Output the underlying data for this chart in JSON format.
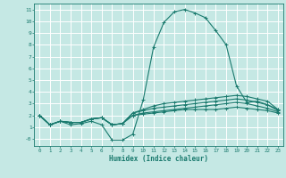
{
  "title": "",
  "xlabel": "Humidex (Indice chaleur)",
  "ylabel": "",
  "xlim": [
    -0.5,
    23.5
  ],
  "ylim": [
    -0.6,
    11.5
  ],
  "xticks": [
    0,
    1,
    2,
    3,
    4,
    5,
    6,
    7,
    8,
    9,
    10,
    11,
    12,
    13,
    14,
    15,
    16,
    17,
    18,
    19,
    20,
    21,
    22,
    23
  ],
  "yticks": [
    0,
    1,
    2,
    3,
    4,
    5,
    6,
    7,
    8,
    9,
    10,
    11
  ],
  "ytick_labels": [
    "-0",
    "1",
    "2",
    "3",
    "4",
    "5",
    "6",
    "7",
    "8",
    "9",
    "10",
    "11"
  ],
  "bg_color": "#c5e8e4",
  "grid_color": "#ffffff",
  "line_color": "#1a7a6e",
  "lines": [
    [
      0,
      2,
      1,
      1.2,
      2,
      1.5,
      3,
      1.2,
      4,
      1.3,
      5,
      1.5,
      6,
      1.2,
      7,
      -0.1,
      8,
      -0.1,
      9,
      0.4,
      10,
      3.3,
      11,
      7.8,
      12,
      9.9,
      13,
      10.8,
      14,
      11.0,
      15,
      10.7,
      16,
      10.3,
      17,
      9.2,
      18,
      8.0,
      19,
      4.5,
      20,
      3.1,
      21,
      3.2,
      22,
      2.9,
      23,
      2.4
    ],
    [
      0,
      2,
      1,
      1.2,
      2,
      1.5,
      3,
      1.4,
      4,
      1.4,
      5,
      1.7,
      6,
      1.8,
      7,
      1.2,
      8,
      1.3,
      9,
      2.2,
      10,
      2.5,
      11,
      2.8,
      12,
      3.0,
      13,
      3.1,
      14,
      3.2,
      15,
      3.3,
      16,
      3.4,
      17,
      3.5,
      18,
      3.6,
      19,
      3.7,
      20,
      3.6,
      21,
      3.4,
      22,
      3.2,
      23,
      2.5
    ],
    [
      0,
      2,
      1,
      1.2,
      2,
      1.5,
      3,
      1.4,
      4,
      1.4,
      5,
      1.7,
      6,
      1.8,
      7,
      1.2,
      8,
      1.3,
      9,
      2.2,
      10,
      2.4,
      11,
      2.6,
      12,
      2.7,
      13,
      2.8,
      14,
      2.9,
      15,
      3.0,
      16,
      3.1,
      17,
      3.2,
      18,
      3.3,
      19,
      3.4,
      20,
      3.3,
      21,
      3.1,
      22,
      2.9,
      23,
      2.5
    ],
    [
      0,
      2,
      1,
      1.2,
      2,
      1.5,
      3,
      1.4,
      4,
      1.4,
      5,
      1.7,
      6,
      1.8,
      7,
      1.2,
      8,
      1.3,
      9,
      2.0,
      10,
      2.2,
      11,
      2.3,
      12,
      2.4,
      13,
      2.5,
      14,
      2.6,
      15,
      2.7,
      16,
      2.8,
      17,
      2.9,
      18,
      3.0,
      19,
      3.1,
      20,
      3.0,
      21,
      2.8,
      22,
      2.6,
      23,
      2.3
    ],
    [
      0,
      2,
      1,
      1.2,
      2,
      1.5,
      3,
      1.4,
      4,
      1.4,
      5,
      1.7,
      6,
      1.8,
      7,
      1.2,
      8,
      1.3,
      9,
      2.0,
      10,
      2.1,
      11,
      2.2,
      12,
      2.3,
      13,
      2.4,
      14,
      2.5,
      15,
      2.5,
      16,
      2.5,
      17,
      2.5,
      18,
      2.6,
      19,
      2.7,
      20,
      2.6,
      21,
      2.5,
      22,
      2.4,
      23,
      2.2
    ]
  ]
}
